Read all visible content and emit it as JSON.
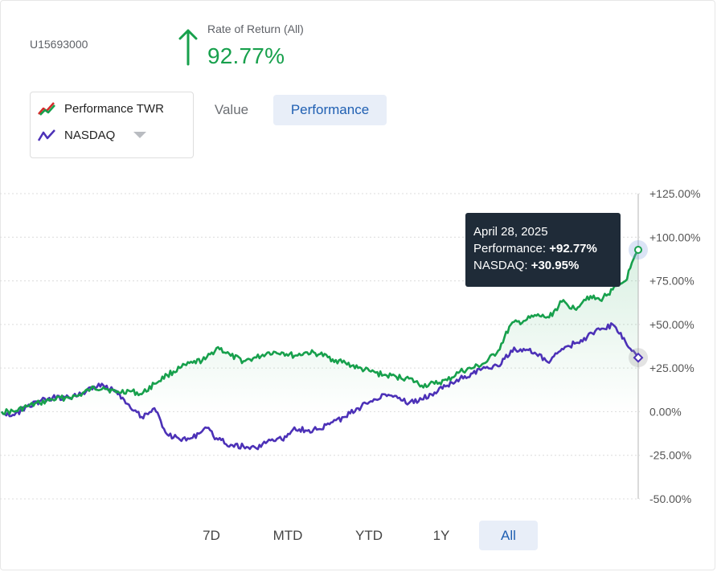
{
  "header": {
    "account_id": "U15693000",
    "rate_label": "Rate of Return (All)",
    "rate_value": "92.77%"
  },
  "legend": {
    "items": [
      {
        "label": "Performance TWR",
        "icon": "performance-line-icon",
        "color": "#17a04c",
        "accent": "#d62b2b"
      },
      {
        "label": "NASDAQ",
        "icon": "nasdaq-line-icon",
        "color": "#4c31b7"
      }
    ]
  },
  "view_toggle": {
    "value_label": "Value",
    "performance_label": "Performance",
    "selected": "Performance"
  },
  "tooltip": {
    "date": "April 28, 2025",
    "performance_label": "Performance: ",
    "performance_value": "+92.77%",
    "nasdaq_label": "NASDAQ: ",
    "nasdaq_value": "+30.95%"
  },
  "time_ranges": {
    "options": [
      "7D",
      "MTD",
      "YTD",
      "1Y",
      "All"
    ],
    "selected": "All"
  },
  "colors": {
    "performance": "#17a04c",
    "nasdaq": "#4c31b7",
    "up": "#17a04c",
    "active_bg": "#e8eef8",
    "active_text": "#1f5fb2"
  },
  "chart_data": {
    "type": "line",
    "x_type": "index",
    "ylim": [
      -50,
      125
    ],
    "y_ticks": [
      125,
      100,
      75,
      50,
      25,
      0,
      -25,
      -50
    ],
    "y_tick_labels": [
      "+125.00%",
      "+100.00%",
      "+75.00%",
      "+50.00%",
      "+25.00%",
      "0.00%",
      "-25.00%",
      "-50.00%"
    ],
    "grid": true,
    "x": [
      0,
      2,
      4,
      6,
      8,
      10,
      12,
      14,
      16,
      18,
      20,
      22,
      24,
      26,
      28,
      30,
      32,
      34,
      36,
      38,
      40,
      42,
      44,
      46,
      48,
      50,
      52,
      54,
      56,
      58,
      60,
      62,
      64,
      66,
      68,
      70,
      72,
      74,
      76,
      78,
      80,
      82,
      84,
      86,
      88,
      90,
      92,
      94,
      96,
      98,
      100
    ],
    "series": [
      {
        "name": "Performance TWR",
        "color": "#17a04c",
        "values": [
          0,
          0,
          3,
          5,
          7,
          8,
          9,
          13,
          14,
          11,
          12,
          10,
          16,
          21,
          25,
          28,
          30,
          37,
          32,
          29,
          31,
          34,
          34,
          32,
          34,
          33,
          30,
          28,
          25,
          23,
          21,
          20,
          19,
          15,
          16,
          18,
          23,
          25,
          28,
          35,
          50,
          52,
          55,
          54,
          63,
          59,
          66,
          64,
          70,
          75,
          92.77
        ]
      },
      {
        "name": "NASDAQ",
        "color": "#4c31b7",
        "values": [
          0,
          -2,
          3,
          6,
          8,
          8,
          9,
          14,
          15,
          12,
          4,
          -3,
          2,
          -13,
          -16,
          -15,
          -9,
          -16,
          -19,
          -20,
          -21,
          -16,
          -16,
          -9,
          -11,
          -10,
          -6,
          -3,
          2,
          6,
          10,
          9,
          5,
          7,
          11,
          15,
          19,
          22,
          25,
          26,
          35,
          36,
          33,
          28,
          36,
          39,
          43,
          47,
          50,
          40,
          30.95
        ]
      }
    ]
  }
}
